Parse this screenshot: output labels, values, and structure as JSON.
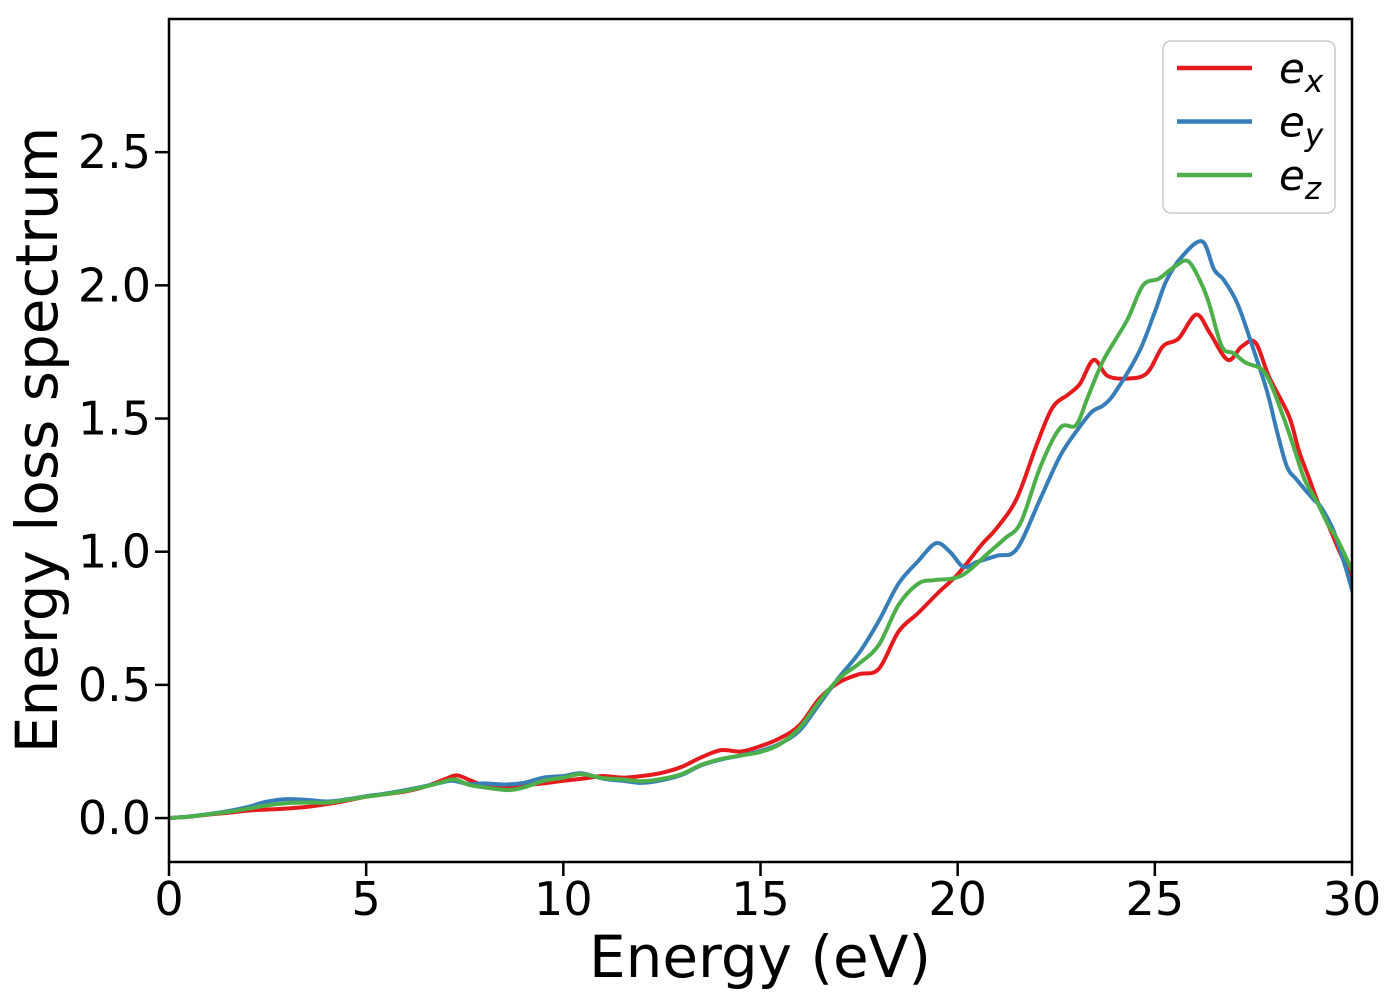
{
  "figure": {
    "background": "#ffffff",
    "frame_color": "#000000",
    "legend_frame_color": "#cccccc"
  },
  "chart_data": {
    "type": "line",
    "title": "",
    "xlabel": "Energy (eV)",
    "ylabel": "Energy loss spectrum",
    "xlim": [
      0,
      30
    ],
    "ylim": [
      -0.165,
      3.0
    ],
    "xtick_values": [
      0,
      5,
      10,
      15,
      20,
      25,
      30
    ],
    "xtick_labels": [
      "0",
      "5",
      "10",
      "15",
      "20",
      "25",
      "30"
    ],
    "ytick_values": [
      0.0,
      0.5,
      1.0,
      1.5,
      2.0,
      2.5
    ],
    "ytick_labels": [
      "0.0",
      "0.5",
      "1.0",
      "1.5",
      "2.0",
      "2.5"
    ],
    "grid": false,
    "legend": {
      "position": "upper right",
      "entries": [
        {
          "base": "e",
          "sub": "x"
        },
        {
          "base": "e",
          "sub": "y"
        },
        {
          "base": "e",
          "sub": "z"
        }
      ]
    },
    "series": [
      {
        "name": "ex",
        "color": "#e41a1c",
        "points": [
          [
            0,
            0
          ],
          [
            0.5,
            0.005
          ],
          [
            1,
            0.013
          ],
          [
            1.5,
            0.02
          ],
          [
            2,
            0.028
          ],
          [
            2.5,
            0.032
          ],
          [
            3,
            0.036
          ],
          [
            3.5,
            0.042
          ],
          [
            4,
            0.052
          ],
          [
            4.5,
            0.065
          ],
          [
            5,
            0.08
          ],
          [
            5.5,
            0.09
          ],
          [
            6,
            0.1
          ],
          [
            6.5,
            0.118
          ],
          [
            7,
            0.146
          ],
          [
            7.3,
            0.16
          ],
          [
            7.7,
            0.138
          ],
          [
            8,
            0.122
          ],
          [
            8.5,
            0.118
          ],
          [
            9,
            0.124
          ],
          [
            9.5,
            0.13
          ],
          [
            10,
            0.14
          ],
          [
            10.6,
            0.15
          ],
          [
            11,
            0.158
          ],
          [
            11.5,
            0.152
          ],
          [
            12,
            0.158
          ],
          [
            12.5,
            0.17
          ],
          [
            13,
            0.192
          ],
          [
            13.5,
            0.228
          ],
          [
            14,
            0.255
          ],
          [
            14.5,
            0.25
          ],
          [
            15,
            0.27
          ],
          [
            15.5,
            0.3
          ],
          [
            16,
            0.35
          ],
          [
            16.5,
            0.45
          ],
          [
            17,
            0.51
          ],
          [
            17.5,
            0.54
          ],
          [
            18,
            0.56
          ],
          [
            18.5,
            0.7
          ],
          [
            19,
            0.77
          ],
          [
            19.5,
            0.845
          ],
          [
            20,
            0.915
          ],
          [
            20.6,
            1.025
          ],
          [
            21,
            1.09
          ],
          [
            21.5,
            1.2
          ],
          [
            22,
            1.4
          ],
          [
            22.4,
            1.54
          ],
          [
            22.8,
            1.59
          ],
          [
            23.1,
            1.63
          ],
          [
            23.45,
            1.72
          ],
          [
            23.8,
            1.66
          ],
          [
            24.3,
            1.65
          ],
          [
            24.8,
            1.67
          ],
          [
            25.2,
            1.77
          ],
          [
            25.6,
            1.8
          ],
          [
            26.05,
            1.89
          ],
          [
            26.4,
            1.82
          ],
          [
            26.85,
            1.72
          ],
          [
            27.2,
            1.77
          ],
          [
            27.55,
            1.785
          ],
          [
            27.9,
            1.655
          ],
          [
            28.4,
            1.51
          ],
          [
            28.65,
            1.38
          ],
          [
            28.9,
            1.28
          ],
          [
            29.15,
            1.18
          ],
          [
            29.4,
            1.1
          ],
          [
            29.7,
            0.995
          ],
          [
            30,
            0.91
          ]
        ]
      },
      {
        "name": "ey",
        "color": "#377eb8",
        "points": [
          [
            0,
            0
          ],
          [
            0.5,
            0.006
          ],
          [
            1,
            0.015
          ],
          [
            1.5,
            0.026
          ],
          [
            2,
            0.042
          ],
          [
            2.5,
            0.062
          ],
          [
            3,
            0.071
          ],
          [
            3.5,
            0.068
          ],
          [
            4,
            0.062
          ],
          [
            4.5,
            0.07
          ],
          [
            5,
            0.082
          ],
          [
            5.5,
            0.092
          ],
          [
            6,
            0.105
          ],
          [
            6.5,
            0.12
          ],
          [
            7,
            0.136
          ],
          [
            7.2,
            0.14
          ],
          [
            7.6,
            0.128
          ],
          [
            8,
            0.13
          ],
          [
            8.5,
            0.126
          ],
          [
            9,
            0.132
          ],
          [
            9.5,
            0.152
          ],
          [
            10,
            0.158
          ],
          [
            10.45,
            0.168
          ],
          [
            11,
            0.148
          ],
          [
            11.5,
            0.14
          ],
          [
            12,
            0.132
          ],
          [
            12.5,
            0.142
          ],
          [
            13,
            0.162
          ],
          [
            13.5,
            0.198
          ],
          [
            14,
            0.22
          ],
          [
            14.5,
            0.235
          ],
          [
            15,
            0.252
          ],
          [
            15.5,
            0.28
          ],
          [
            16,
            0.33
          ],
          [
            16.5,
            0.43
          ],
          [
            17,
            0.53
          ],
          [
            17.5,
            0.62
          ],
          [
            18,
            0.74
          ],
          [
            18.5,
            0.88
          ],
          [
            19,
            0.965
          ],
          [
            19.45,
            1.032
          ],
          [
            19.8,
            1.0
          ],
          [
            20.15,
            0.943
          ],
          [
            20.5,
            0.962
          ],
          [
            21,
            0.985
          ],
          [
            21.5,
            1.01
          ],
          [
            22.1,
            1.2
          ],
          [
            22.6,
            1.36
          ],
          [
            23.05,
            1.46
          ],
          [
            23.4,
            1.525
          ],
          [
            23.7,
            1.55
          ],
          [
            24,
            1.6
          ],
          [
            24.6,
            1.75
          ],
          [
            25,
            1.9
          ],
          [
            25.3,
            2.02
          ],
          [
            25.7,
            2.11
          ],
          [
            26.2,
            2.165
          ],
          [
            26.5,
            2.06
          ],
          [
            26.75,
            2.02
          ],
          [
            27.1,
            1.93
          ],
          [
            27.5,
            1.76
          ],
          [
            27.85,
            1.6
          ],
          [
            28.1,
            1.45
          ],
          [
            28.35,
            1.32
          ],
          [
            28.6,
            1.27
          ],
          [
            29,
            1.2
          ],
          [
            29.2,
            1.17
          ],
          [
            29.5,
            1.09
          ],
          [
            29.7,
            1.005
          ],
          [
            29.92,
            0.9
          ],
          [
            30,
            0.855
          ]
        ]
      },
      {
        "name": "ez",
        "color": "#4daf4a",
        "points": [
          [
            0,
            0
          ],
          [
            0.5,
            0.005
          ],
          [
            1,
            0.014
          ],
          [
            1.5,
            0.023
          ],
          [
            2,
            0.035
          ],
          [
            2.5,
            0.048
          ],
          [
            3,
            0.056
          ],
          [
            3.5,
            0.058
          ],
          [
            4,
            0.058
          ],
          [
            4.5,
            0.068
          ],
          [
            5,
            0.08
          ],
          [
            5.5,
            0.09
          ],
          [
            6,
            0.102
          ],
          [
            6.5,
            0.118
          ],
          [
            7,
            0.138
          ],
          [
            7.25,
            0.145
          ],
          [
            7.6,
            0.125
          ],
          [
            8,
            0.115
          ],
          [
            8.6,
            0.105
          ],
          [
            9,
            0.115
          ],
          [
            9.5,
            0.14
          ],
          [
            10,
            0.152
          ],
          [
            10.45,
            0.165
          ],
          [
            11,
            0.15
          ],
          [
            11.5,
            0.145
          ],
          [
            12,
            0.138
          ],
          [
            12.5,
            0.147
          ],
          [
            13,
            0.165
          ],
          [
            13.5,
            0.2
          ],
          [
            14,
            0.222
          ],
          [
            14.5,
            0.235
          ],
          [
            15,
            0.248
          ],
          [
            15.5,
            0.278
          ],
          [
            16,
            0.34
          ],
          [
            16.5,
            0.44
          ],
          [
            17,
            0.525
          ],
          [
            17.5,
            0.58
          ],
          [
            18,
            0.65
          ],
          [
            18.5,
            0.8
          ],
          [
            19,
            0.88
          ],
          [
            19.4,
            0.893
          ],
          [
            19.9,
            0.9
          ],
          [
            20.25,
            0.925
          ],
          [
            20.7,
            0.985
          ],
          [
            21.2,
            1.05
          ],
          [
            21.6,
            1.11
          ],
          [
            22.1,
            1.32
          ],
          [
            22.6,
            1.465
          ],
          [
            23,
            1.475
          ],
          [
            23.3,
            1.58
          ],
          [
            23.7,
            1.72
          ],
          [
            24.3,
            1.87
          ],
          [
            24.7,
            2.0
          ],
          [
            25.1,
            2.025
          ],
          [
            25.5,
            2.07
          ],
          [
            25.85,
            2.09
          ],
          [
            26.2,
            2.0
          ],
          [
            26.4,
            1.92
          ],
          [
            26.7,
            1.77
          ],
          [
            27,
            1.745
          ],
          [
            27.3,
            1.71
          ],
          [
            27.8,
            1.67
          ],
          [
            28.25,
            1.51
          ],
          [
            28.55,
            1.38
          ],
          [
            28.8,
            1.27
          ],
          [
            29.1,
            1.19
          ],
          [
            29.4,
            1.1
          ],
          [
            29.65,
            1.04
          ],
          [
            30,
            0.93
          ]
        ]
      }
    ]
  }
}
